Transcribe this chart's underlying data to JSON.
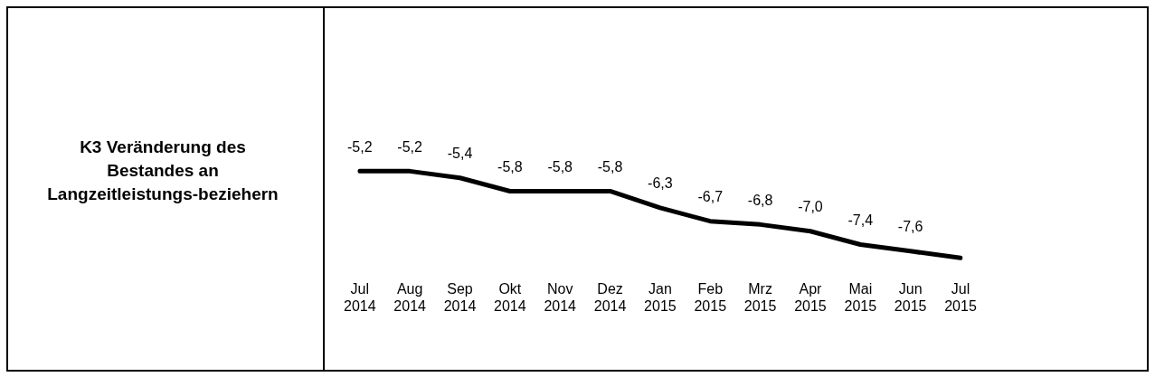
{
  "chart_data": {
    "type": "line",
    "title": "K3 Veränderung des Bestandes an Langzeitleistungs-beziehern",
    "categories": [
      "Jul 2014",
      "Aug 2014",
      "Sep 2014",
      "Okt 2014",
      "Nov 2014",
      "Dez 2014",
      "Jan 2015",
      "Feb 2015",
      "Mrz 2015",
      "Apr 2015",
      "Mai 2015",
      "Jun 2015",
      "Jul 2015"
    ],
    "values": [
      -5.2,
      -5.2,
      -5.4,
      -5.8,
      -5.8,
      -5.8,
      -6.3,
      -6.7,
      -6.8,
      -7.0,
      -7.4,
      -7.6,
      -7.8
    ],
    "value_labels": [
      "-5,2",
      "-5,2",
      "-5,4",
      "-5,8",
      "-5,8",
      "-5,8",
      "-6,3",
      "-6,7",
      "-6,8",
      "-7,0",
      "-7,4",
      "-7,6",
      null
    ],
    "color": "#000000",
    "marker": "none"
  }
}
